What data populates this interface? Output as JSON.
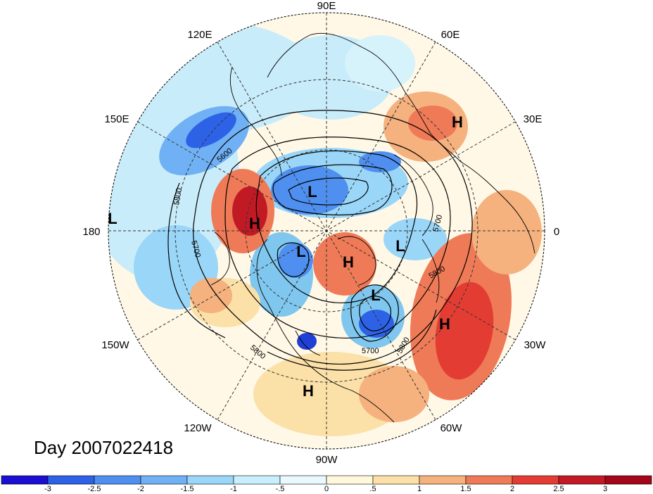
{
  "map": {
    "day_label": "Day 2007022418",
    "longitude_labels": [
      {
        "text": "90E",
        "lon": "90E"
      },
      {
        "text": "60E",
        "lon": "60E"
      },
      {
        "text": "30E",
        "lon": "30E"
      },
      {
        "text": "0",
        "lon": "0"
      },
      {
        "text": "30W",
        "lon": "30W"
      },
      {
        "text": "60W",
        "lon": "60W"
      },
      {
        "text": "90W",
        "lon": "90W"
      },
      {
        "text": "120W",
        "lon": "120W"
      },
      {
        "text": "150W",
        "lon": "150W"
      },
      {
        "text": "180",
        "lon": "180"
      },
      {
        "text": "150E",
        "lon": "150E"
      },
      {
        "text": "120E",
        "lon": "120E"
      }
    ],
    "pressure_centers": [
      {
        "type": "H",
        "region": "eastern-europe"
      },
      {
        "type": "L",
        "region": "north-pacific"
      },
      {
        "type": "H",
        "region": "alaska"
      },
      {
        "type": "L",
        "region": "siberia"
      },
      {
        "type": "L",
        "region": "canadian-arctic"
      },
      {
        "type": "H",
        "region": "greenland"
      },
      {
        "type": "L",
        "region": "norwegian-sea"
      },
      {
        "type": "L",
        "region": "north-atlantic"
      },
      {
        "type": "H",
        "region": "central-atlantic"
      },
      {
        "type": "H",
        "region": "mexico"
      }
    ],
    "contour_labels": [
      "5600",
      "5800",
      "5700",
      "5700",
      "5800",
      "5800",
      "5700",
      "5800"
    ],
    "colors": {
      "strong_warm": "#a0101e",
      "warm": "#e0473a",
      "mild_warm": "#f4a27c",
      "weak_warm": "#fbe6be",
      "neutral": "#fff8e6",
      "weak_cold": "#d6f2fb",
      "cold": "#7fc7ef",
      "strong_cold": "#1f3fd6"
    }
  },
  "colorbar": {
    "ticks": [
      "-3",
      "-2.5",
      "-2",
      "-1.5",
      "-1",
      "-.5",
      "0",
      ".5",
      "1",
      "1.5",
      "2",
      "2.5",
      "3"
    ],
    "colors": [
      "#1a0fd0",
      "#2e62e6",
      "#4f8fef",
      "#6fb1f4",
      "#9ad6f8",
      "#c8effb",
      "#e9f9fd",
      "#fff8dc",
      "#fbe0a8",
      "#f5b17e",
      "#ef7a57",
      "#e33d33",
      "#c21a25",
      "#a3061b"
    ]
  }
}
